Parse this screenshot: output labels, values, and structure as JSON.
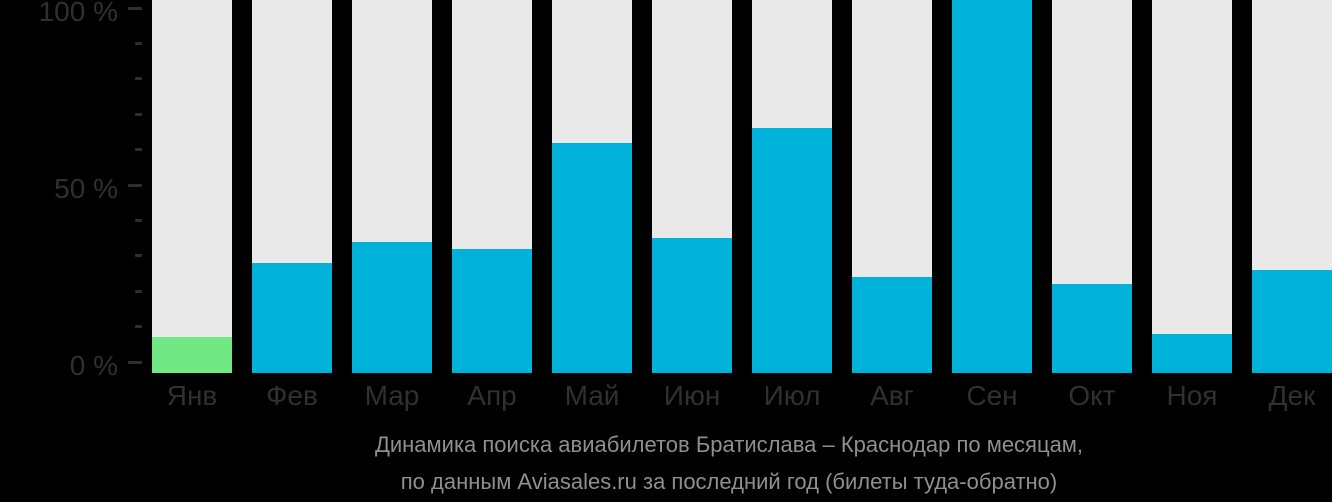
{
  "page": {
    "background_color": "#000000"
  },
  "chart_data": {
    "type": "bar",
    "title": "Динамика поиска авиабилетов Братислава – Краснодар по месяцам,",
    "subtitle": "по данным Aviasales.ru за последний год (билеты туда-обратно)",
    "categories": [
      "Янв",
      "Фев",
      "Мар",
      "Апр",
      "Май",
      "Июн",
      "Июл",
      "Авг",
      "Сен",
      "Окт",
      "Ноя",
      "Дек"
    ],
    "values": [
      7,
      28,
      34,
      32,
      62,
      35,
      66,
      24,
      100,
      22,
      8,
      26
    ],
    "unit": "%",
    "xlabel": "",
    "ylabel": "",
    "ylim": [
      0,
      100
    ],
    "yticks_major": [
      {
        "value": 0,
        "label": "0 %"
      },
      {
        "value": 50,
        "label": "50 %"
      },
      {
        "value": 100,
        "label": "100 %"
      }
    ],
    "ytick_minor_step": 10,
    "highlight_index": 0,
    "highlight_month": "Янв",
    "legend": "none",
    "grid": "off",
    "colors": {
      "bar_default": "#00B1D9",
      "bar_highlight": "#70E884",
      "bar_track": "#E9E9E9",
      "axis_text": "#303030",
      "caption_text": "#8F8F8F",
      "background": "#000000"
    }
  }
}
